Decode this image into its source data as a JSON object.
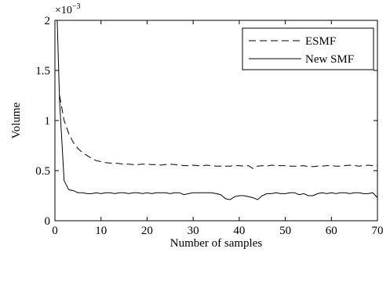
{
  "chart_data": {
    "type": "line",
    "xlabel": "Number of samples",
    "ylabel": "Volume",
    "y_multiplier": "×10",
    "y_multiplier_exponent": "−3",
    "xlim": [
      0,
      70
    ],
    "ylim": [
      0,
      2
    ],
    "x_ticks": [
      0,
      10,
      20,
      30,
      40,
      50,
      60,
      70
    ],
    "x_tick_labels": [
      "0",
      "10",
      "20",
      "30",
      "40",
      "50",
      "60",
      "70"
    ],
    "y_ticks": [
      0,
      0.5,
      1,
      1.5,
      2
    ],
    "y_tick_labels": [
      "0",
      "0.5",
      "1",
      "1.5",
      "2"
    ],
    "grid": false,
    "legend_position": "top-right",
    "series": [
      {
        "name": "ESMF",
        "style": "dashed",
        "color": "#000000",
        "x": [
          1,
          2,
          3,
          4,
          5,
          6,
          7,
          8,
          9,
          10,
          11,
          12,
          13,
          14,
          15,
          16,
          17,
          18,
          19,
          20,
          21,
          22,
          23,
          24,
          25,
          26,
          27,
          28,
          29,
          30,
          31,
          32,
          33,
          34,
          35,
          36,
          37,
          38,
          39,
          40,
          41,
          42,
          43,
          44,
          45,
          46,
          47,
          48,
          49,
          50,
          51,
          52,
          53,
          54,
          55,
          56,
          57,
          58,
          59,
          60,
          61,
          62,
          63,
          64,
          65,
          66,
          67,
          68,
          69,
          70
        ],
        "values": [
          1.25,
          1.0,
          0.87,
          0.78,
          0.72,
          0.68,
          0.65,
          0.62,
          0.6,
          0.59,
          0.58,
          0.575,
          0.575,
          0.57,
          0.565,
          0.565,
          0.56,
          0.56,
          0.565,
          0.565,
          0.56,
          0.56,
          0.555,
          0.56,
          0.565,
          0.56,
          0.555,
          0.55,
          0.55,
          0.555,
          0.55,
          0.55,
          0.555,
          0.55,
          0.545,
          0.545,
          0.545,
          0.545,
          0.55,
          0.55,
          0.545,
          0.55,
          0.52,
          0.545,
          0.55,
          0.545,
          0.555,
          0.55,
          0.55,
          0.55,
          0.545,
          0.545,
          0.545,
          0.55,
          0.54,
          0.54,
          0.545,
          0.545,
          0.55,
          0.55,
          0.545,
          0.545,
          0.55,
          0.555,
          0.55,
          0.545,
          0.55,
          0.555,
          0.55,
          0.55
        ]
      },
      {
        "name": "New SMF",
        "style": "solid",
        "color": "#000000",
        "x": [
          0.5,
          1,
          2,
          3,
          4,
          5,
          6,
          7,
          8,
          9,
          10,
          11,
          12,
          13,
          14,
          15,
          16,
          17,
          18,
          19,
          20,
          21,
          22,
          23,
          24,
          25,
          26,
          27,
          28,
          29,
          30,
          31,
          32,
          33,
          34,
          35,
          36,
          37,
          38,
          39,
          40,
          41,
          42,
          43,
          44,
          45,
          46,
          47,
          48,
          49,
          50,
          51,
          52,
          53,
          54,
          55,
          56,
          57,
          58,
          59,
          60,
          61,
          62,
          63,
          64,
          65,
          66,
          67,
          68,
          69,
          70
        ],
        "values": [
          2.0,
          1.2,
          0.4,
          0.31,
          0.3,
          0.28,
          0.28,
          0.27,
          0.27,
          0.28,
          0.27,
          0.28,
          0.28,
          0.27,
          0.28,
          0.28,
          0.27,
          0.28,
          0.28,
          0.27,
          0.28,
          0.27,
          0.28,
          0.28,
          0.28,
          0.27,
          0.28,
          0.28,
          0.26,
          0.27,
          0.28,
          0.28,
          0.28,
          0.28,
          0.28,
          0.27,
          0.26,
          0.22,
          0.21,
          0.24,
          0.25,
          0.25,
          0.24,
          0.23,
          0.21,
          0.25,
          0.27,
          0.27,
          0.28,
          0.27,
          0.27,
          0.28,
          0.28,
          0.26,
          0.27,
          0.25,
          0.25,
          0.27,
          0.28,
          0.27,
          0.28,
          0.27,
          0.28,
          0.28,
          0.27,
          0.28,
          0.28,
          0.27,
          0.27,
          0.28,
          0.23
        ]
      }
    ]
  }
}
